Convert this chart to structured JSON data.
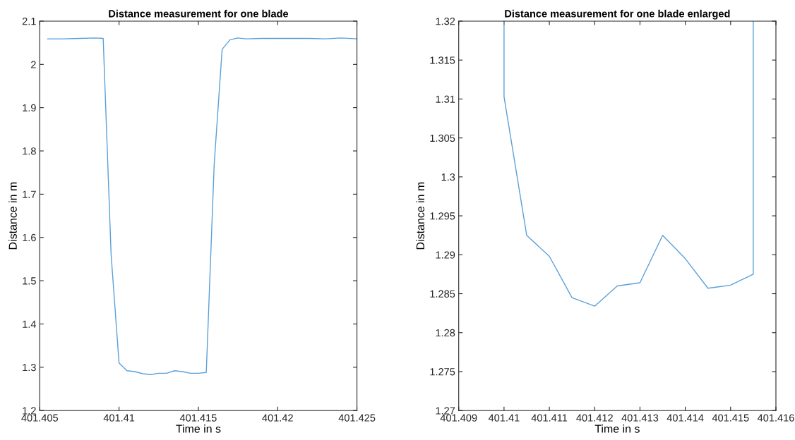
{
  "chart_data": [
    {
      "type": "line",
      "title": "Distance measurement for one blade",
      "xlabel": "Time in s",
      "ylabel": "Distance in m",
      "x": [
        401.4055,
        401.4065,
        401.4075,
        401.4085,
        401.409,
        401.4095,
        401.41,
        401.4105,
        401.411,
        401.4115,
        401.412,
        401.4125,
        401.413,
        401.4135,
        401.414,
        401.4145,
        401.415,
        401.4155,
        401.416,
        401.4165,
        401.417,
        401.4175,
        401.418,
        401.419,
        401.42,
        401.421,
        401.422,
        401.423,
        401.424,
        401.425
      ],
      "series": [
        {
          "color": "#5aa0d8",
          "values": [
            2.059,
            2.059,
            2.06,
            2.061,
            2.06,
            1.56,
            1.31,
            1.292,
            1.29,
            1.285,
            1.283,
            1.286,
            1.286,
            1.292,
            1.29,
            1.286,
            1.286,
            1.288,
            1.77,
            2.035,
            2.057,
            2.061,
            2.059,
            2.06,
            2.06,
            2.06,
            2.06,
            2.059,
            2.061,
            2.059
          ]
        }
      ],
      "xlim": [
        401.405,
        401.425
      ],
      "xticks": [
        401.405,
        401.41,
        401.415,
        401.42,
        401.425
      ],
      "ylim": [
        1.2,
        2.1
      ],
      "yticks": [
        1.2,
        1.3,
        1.4,
        1.5,
        1.6,
        1.7,
        1.8,
        1.9,
        2,
        2.1
      ],
      "grid": false,
      "legend": false
    },
    {
      "type": "line",
      "title": "Distance measurement for one blade enlarged",
      "xlabel": "Time in s",
      "ylabel": "Distance in m",
      "x": [
        401.41,
        401.41,
        401.4105,
        401.411,
        401.4115,
        401.412,
        401.4125,
        401.413,
        401.4135,
        401.414,
        401.4145,
        401.415,
        401.4155,
        401.4155
      ],
      "series": [
        {
          "color": "#5aa0d8",
          "values": [
            1.32,
            1.3103,
            1.2925,
            1.2898,
            1.2845,
            1.2834,
            1.286,
            1.2864,
            1.2925,
            1.2895,
            1.2857,
            1.2861,
            1.2875,
            1.32
          ]
        }
      ],
      "xlim": [
        401.409,
        401.416
      ],
      "xticks": [
        401.409,
        401.41,
        401.411,
        401.412,
        401.413,
        401.414,
        401.415,
        401.416
      ],
      "ylim": [
        1.27,
        1.32
      ],
      "yticks": [
        1.27,
        1.275,
        1.28,
        1.285,
        1.29,
        1.295,
        1.3,
        1.305,
        1.31,
        1.315,
        1.32
      ],
      "grid": false,
      "legend": false
    }
  ]
}
